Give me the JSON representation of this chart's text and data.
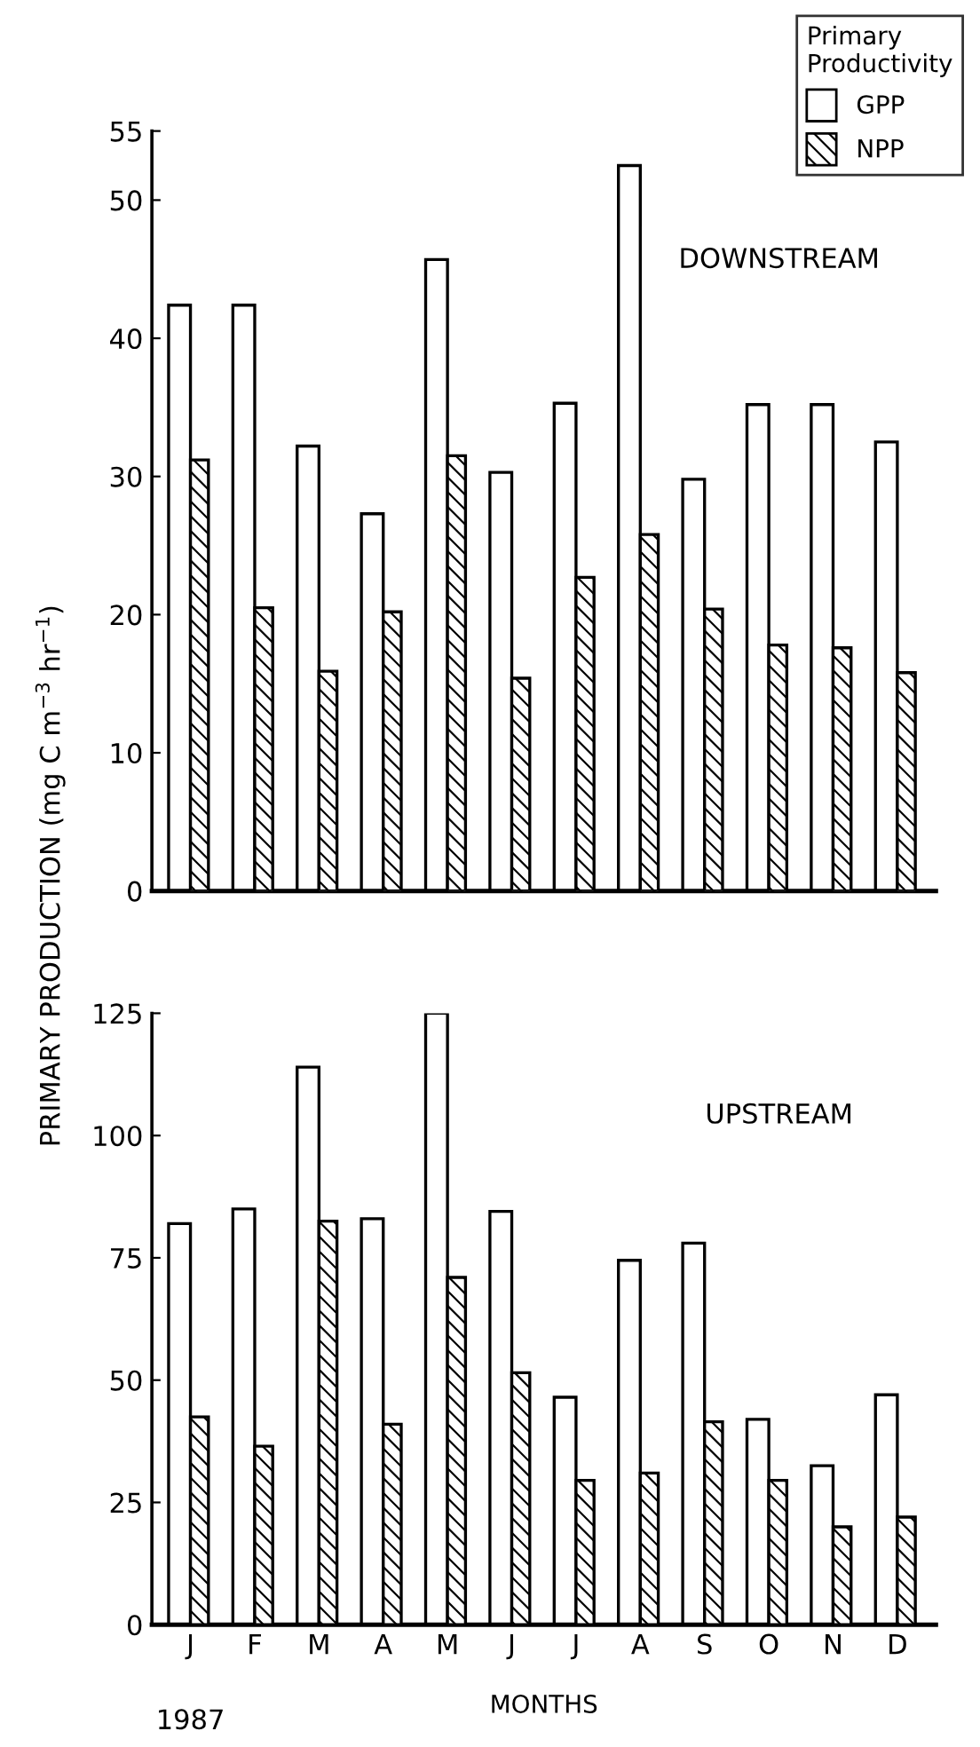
{
  "chart_data": [
    {
      "type": "bar",
      "ylabel": "PRIMARY PRODUCTION (mg C m$^{−3}$ hr$^{−1}$)",
      "legend_title": "Primary\nProductivity",
      "legend": "top right",
      "tick_labels": "y",
      "annotations": [
        "DOWNSTREAM"
      ],
      "categories": [
        null,
        null,
        null,
        null,
        null,
        null,
        null,
        null,
        null,
        null,
        null,
        null
      ],
      "ylim": [
        0,
        55
      ],
      "yticks": [
        0,
        10,
        20,
        30,
        40,
        50,
        55
      ],
      "series": [
        {
          "name": "GPP",
          "color": "#ffffff",
          "values": [
            42.4,
            42.4,
            32.2,
            27.3,
            45.7,
            30.3,
            35.3,
            52.5,
            29.8,
            35.2,
            35.2,
            32.5
          ]
        },
        {
          "name": "NPP",
          "color": "#000000",
          "values": [
            31.2,
            20.5,
            15.9,
            20.2,
            31.5,
            15.4,
            22.7,
            25.8,
            20.4,
            17.8,
            17.6,
            15.8
          ]
        }
      ]
    },
    {
      "type": "bar",
      "xlabel": "MONTHS",
      "annotations": [
        "UPSTREAM",
        "1987"
      ],
      "categories": [
        "J",
        "F",
        "M",
        "A",
        "M",
        "J",
        "J",
        "A",
        "S",
        "O",
        "N",
        "D"
      ],
      "ylim": [
        0,
        125
      ],
      "yticks": [
        0,
        25,
        50,
        75,
        100,
        125
      ],
      "series": [
        {
          "color": "#ffffff",
          "values": [
            82,
            85,
            114,
            83,
            125,
            84.5,
            46.5,
            74.5,
            78,
            42,
            32.5,
            47
          ]
        },
        {
          "color": "#000000",
          "values": [
            42.5,
            36.5,
            82.5,
            41,
            71,
            51.5,
            29.5,
            31,
            41.5,
            29.5,
            20,
            22
          ]
        }
      ]
    }
  ]
}
